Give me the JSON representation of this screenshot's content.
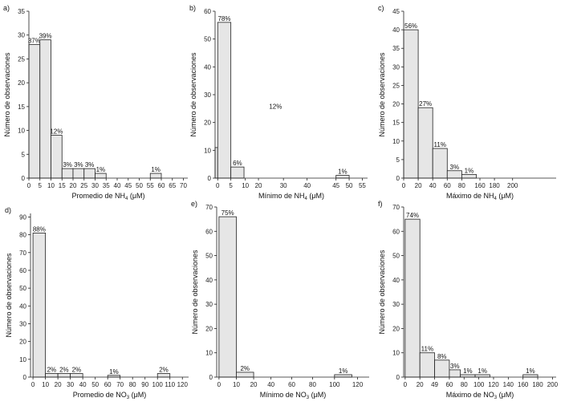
{
  "chart_data": [
    {
      "panel": "a)",
      "type": "bar",
      "ylabel": "Número de observaciones",
      "xlabel": "Promedio de NH4 (μM)",
      "xlabel_main": "Promedio de NH",
      "xlabel_sub": "4",
      "xlabel_tail": " (μM)",
      "xlim": [
        0,
        72
      ],
      "ylim": [
        0,
        35
      ],
      "xticks": [
        0,
        5,
        10,
        15,
        20,
        25,
        30,
        35,
        40,
        45,
        50,
        55,
        60,
        65,
        70
      ],
      "yticks": [
        0,
        5,
        10,
        15,
        20,
        25,
        30,
        35
      ],
      "bins": [
        {
          "x0": 0,
          "x1": 5,
          "count": 28,
          "label": "37%"
        },
        {
          "x0": 5,
          "x1": 10,
          "count": 29,
          "label": "39%"
        },
        {
          "x0": 10,
          "x1": 15,
          "count": 9,
          "label": "12%"
        },
        {
          "x0": 15,
          "x1": 20,
          "count": 2,
          "label": "3%"
        },
        {
          "x0": 20,
          "x1": 25,
          "count": 2,
          "label": "3%"
        },
        {
          "x0": 25,
          "x1": 30,
          "count": 2,
          "label": "3%"
        },
        {
          "x0": 30,
          "x1": 35,
          "count": 1,
          "label": "1%"
        },
        {
          "x0": 55,
          "x1": 60,
          "count": 1,
          "label": "1%"
        }
      ]
    },
    {
      "panel": "b)",
      "type": "bar",
      "ylabel": "Número de observaciones",
      "xlabel": "Mínimo de NH4 (μM)",
      "xlabel_main": "Mínimo de NH",
      "xlabel_sub": "4",
      "xlabel_tail": " (μM)",
      "xlim": [
        -1,
        57
      ],
      "ylim": [
        0,
        60
      ],
      "xticks": [
        0,
        5,
        10,
        20,
        30,
        40,
        45,
        50,
        55
      ],
      "xtick_positions": [
        0,
        5,
        10.5,
        15.5,
        25,
        34,
        45,
        50,
        55
      ],
      "yticks": [
        0,
        10,
        20,
        30,
        40,
        50,
        60
      ],
      "bins": [
        {
          "x0": -1,
          "x1": 0,
          "count": 11,
          "label": ""
        },
        {
          "x0": 0,
          "x1": 5,
          "count": 56,
          "label": "78%"
        },
        {
          "x0": 5,
          "x1": 10,
          "count": 4,
          "label": "6%"
        },
        {
          "x0": 45,
          "x1": 50,
          "count": 1,
          "label": "1%"
        }
      ],
      "annotations": [
        {
          "text": "12%",
          "x": 22,
          "y": 25
        }
      ]
    },
    {
      "panel": "c)",
      "type": "bar",
      "ylabel": "Número de observaciones",
      "xlabel": "Máximo de NH4 (μM)",
      "xlabel_main": "Máximo  de NH",
      "xlabel_sub": "4",
      "xlabel_tail": " (μM)",
      "xlim": [
        0,
        210
      ],
      "ylim": [
        0,
        45
      ],
      "xticks": [
        0,
        20,
        40,
        60,
        80,
        160,
        180,
        200
      ],
      "xtick_positions": [
        0,
        20,
        40,
        60,
        80,
        105,
        125,
        150
      ],
      "yticks": [
        0,
        5,
        10,
        15,
        20,
        25,
        30,
        35,
        40,
        45
      ],
      "bins": [
        {
          "x0": 0,
          "x1": 20,
          "count": 40,
          "label": "56%"
        },
        {
          "x0": 20,
          "x1": 40,
          "count": 19,
          "label": "27%"
        },
        {
          "x0": 40,
          "x1": 60,
          "count": 8,
          "label": "11%"
        },
        {
          "x0": 60,
          "x1": 80,
          "count": 2,
          "label": "3%"
        },
        {
          "x0": 80,
          "x1": 100,
          "count": 1,
          "label": "1%"
        }
      ]
    },
    {
      "panel": "d)",
      "type": "bar",
      "ylabel": "Número de observaciones",
      "xlabel": "Promedio de NO3 (μM)",
      "xlabel_main": "Promedio de NO",
      "xlabel_sub": "3",
      "xlabel_tail": " (μM)",
      "xlim": [
        -2,
        125
      ],
      "ylim": [
        0,
        92
      ],
      "xticks": [
        0,
        10,
        20,
        30,
        40,
        50,
        60,
        70,
        80,
        90,
        100,
        110,
        120
      ],
      "yticks": [
        0,
        10,
        20,
        30,
        40,
        50,
        60,
        70,
        80,
        90
      ],
      "bins": [
        {
          "x0": 0,
          "x1": 10,
          "count": 81,
          "label": "88%"
        },
        {
          "x0": 10,
          "x1": 20,
          "count": 2,
          "label": "2%"
        },
        {
          "x0": 20,
          "x1": 30,
          "count": 2,
          "label": "2%"
        },
        {
          "x0": 30,
          "x1": 40,
          "count": 2,
          "label": "2%"
        },
        {
          "x0": 60,
          "x1": 70,
          "count": 1,
          "label": "1%"
        },
        {
          "x0": 100,
          "x1": 110,
          "count": 2,
          "label": "2%"
        }
      ]
    },
    {
      "panel": "e)",
      "type": "bar",
      "ylabel": "Número de observaciones",
      "xlabel": "Mínimo de NO3 (μM)",
      "xlabel_main": "Mínimo de NO",
      "xlabel_sub": "3",
      "xlabel_tail": " (μM)",
      "xlim": [
        -2,
        130
      ],
      "ylim": [
        0,
        70
      ],
      "xticks": [
        0,
        10,
        20,
        40,
        60,
        80,
        100,
        120
      ],
      "xtick_positions": [
        0,
        15,
        30,
        45,
        63,
        81,
        100,
        120
      ],
      "yticks": [
        0,
        10,
        20,
        30,
        40,
        50,
        60,
        70
      ],
      "bins": [
        {
          "x0": 0,
          "x1": 15,
          "count": 66,
          "label": "75%"
        },
        {
          "x0": 15,
          "x1": 30,
          "count": 2,
          "label": "2%"
        },
        {
          "x0": 100,
          "x1": 115,
          "count": 1,
          "label": "1%"
        }
      ]
    },
    {
      "panel": "f)",
      "type": "bar",
      "ylabel": "Número de observaciones",
      "xlabel": "Máximo de NO3 (μM)",
      "xlabel_main": "Máximo  de NO",
      "xlabel_sub": "3",
      "xlabel_tail": " (μM)",
      "xlim": [
        -2,
        205
      ],
      "ylim": [
        0,
        70
      ],
      "xticks": [
        0,
        20,
        49,
        60,
        80,
        100,
        120,
        140,
        160,
        180,
        200
      ],
      "xtick_positions": [
        0,
        20,
        40,
        60,
        80,
        100,
        120,
        140,
        160,
        180,
        200
      ],
      "yticks": [
        0,
        10,
        20,
        30,
        40,
        50,
        60,
        70
      ],
      "bins": [
        {
          "x0": 0,
          "x1": 20,
          "count": 65,
          "label": "74%"
        },
        {
          "x0": 20,
          "x1": 40,
          "count": 10,
          "label": "11%"
        },
        {
          "x0": 40,
          "x1": 60,
          "count": 7,
          "label": "8%"
        },
        {
          "x0": 60,
          "x1": 75,
          "count": 3,
          "label": "3%"
        },
        {
          "x0": 75,
          "x1": 95,
          "count": 1,
          "label": "1%"
        },
        {
          "x0": 95,
          "x1": 115,
          "count": 1,
          "label": "1%"
        },
        {
          "x0": 160,
          "x1": 180,
          "count": 1,
          "label": "1%"
        }
      ]
    }
  ]
}
